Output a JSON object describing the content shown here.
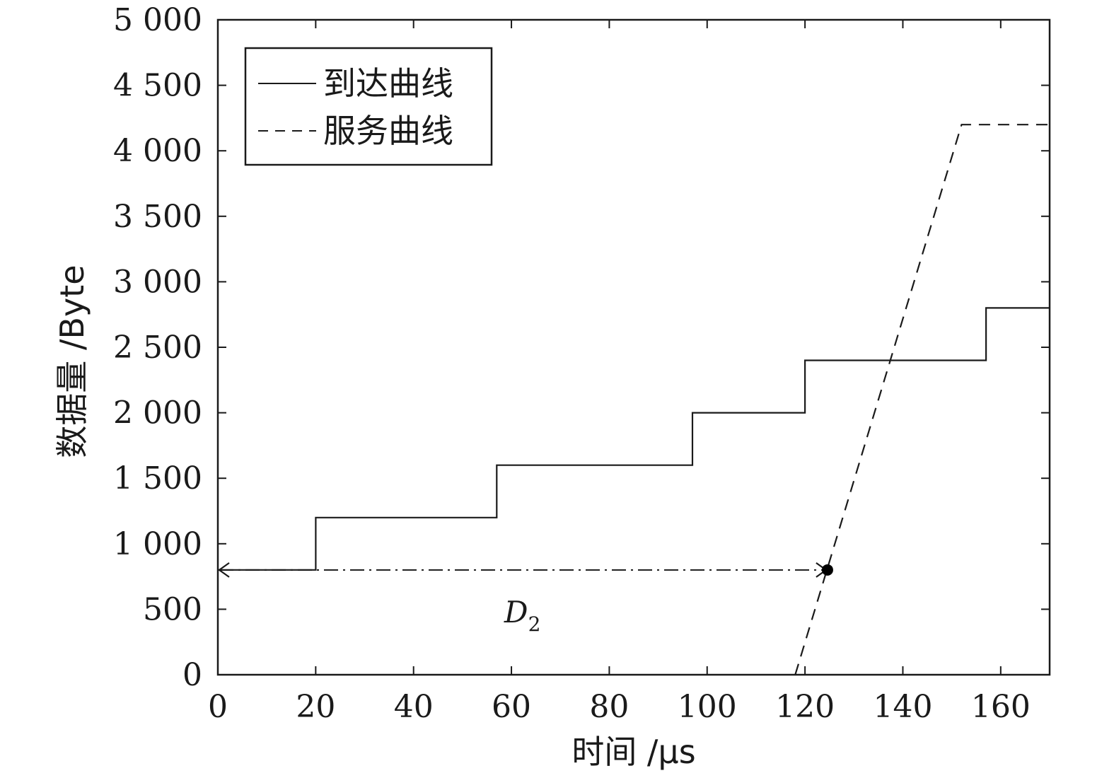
{
  "chart_data": {
    "type": "line",
    "title": "",
    "xlabel": "时间 /μs",
    "ylabel": "数据量 /Byte",
    "xlim": [
      0,
      170
    ],
    "ylim": [
      0,
      5000
    ],
    "xticks": [
      0,
      20,
      40,
      60,
      80,
      100,
      120,
      140,
      160
    ],
    "xtick_labels": [
      "0",
      "20",
      "40",
      "60",
      "80",
      "100",
      "120",
      "140",
      "160"
    ],
    "yticks": [
      0,
      500,
      1000,
      1500,
      2000,
      2500,
      3000,
      3500,
      4000,
      4500,
      5000
    ],
    "ytick_labels": [
      "0",
      "500",
      "1 000",
      "1 500",
      "2 000",
      "2 500",
      "3 000",
      "3 500",
      "4 000",
      "4 500",
      "5 000"
    ],
    "grid": false,
    "legend_position": "top-left",
    "series": [
      {
        "name": "到达曲线",
        "style": "solid",
        "color": "#1a1a1a",
        "x": [
          0,
          20,
          20,
          57,
          57,
          97,
          97,
          120,
          120,
          157,
          157,
          170
        ],
        "y": [
          800,
          800,
          1200,
          1200,
          1600,
          1600,
          2000,
          2000,
          2400,
          2400,
          2800,
          2800
        ]
      },
      {
        "name": "服务曲线",
        "style": "dashed",
        "color": "#1a1a1a",
        "x": [
          118,
          152,
          170
        ],
        "y": [
          0,
          4200,
          4200
        ]
      }
    ],
    "annotations": [
      {
        "kind": "double-arrow",
        "style": "dash-dot",
        "x_start": 0,
        "x_end": 124.6,
        "y": 800,
        "end_marker": "dot",
        "label_main": "D",
        "label_sub": "2",
        "label_x": 62,
        "label_y": 550
      }
    ]
  }
}
